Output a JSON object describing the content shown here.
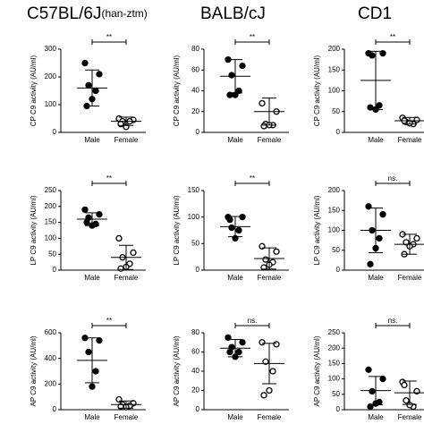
{
  "column_titles": [
    {
      "text": "C57BL/6J",
      "sub": "(han-ztm)"
    },
    {
      "text": "BALB/cJ"
    },
    {
      "text": "CD1"
    }
  ],
  "chart_data": [
    {
      "type": "scatter",
      "ylabel": "CP C9 activity (AU/ml)",
      "categories": [
        "Male",
        "Female"
      ],
      "points": [
        [
          250,
          210,
          170,
          150,
          120,
          95
        ],
        [
          50,
          45,
          40,
          40,
          20,
          30
        ]
      ],
      "means": [
        160,
        40
      ],
      "errors": [
        65,
        15
      ],
      "fills": [
        "#000",
        "#fff"
      ],
      "significance": "**",
      "ylim": [
        0,
        300
      ],
      "yticks": [
        0,
        100,
        200,
        300
      ]
    },
    {
      "type": "scatter",
      "ylabel": "CP C9 activity (AU/ml)",
      "categories": [
        "Male",
        "Female"
      ],
      "points": [
        [
          70,
          64,
          55,
          40,
          36,
          36
        ],
        [
          28,
          20,
          8,
          7,
          7,
          6
        ]
      ],
      "means": [
        54,
        20
      ],
      "errors": [
        16,
        13
      ],
      "fills": [
        "#000",
        "#fff"
      ],
      "significance": "**",
      "ylim": [
        0,
        80
      ],
      "yticks": [
        0,
        20,
        40,
        60,
        80
      ]
    },
    {
      "type": "scatter",
      "ylabel": "CP C9 activity (AU/ml)",
      "categories": [
        "Male",
        "Female"
      ],
      "points": [
        [
          190,
          190,
          185,
          65,
          55,
          60
        ],
        [
          35,
          30,
          25,
          20,
          22,
          28
        ]
      ],
      "means": [
        125,
        28
      ],
      "errors": [
        70,
        8
      ],
      "fills": [
        "#000",
        "#fff"
      ],
      "significance": "**",
      "ylim": [
        0,
        200
      ],
      "yticks": [
        0,
        50,
        100,
        150,
        200
      ]
    },
    {
      "type": "scatter",
      "ylabel": "LP C9 activity (AU/ml)",
      "categories": [
        "Male",
        "Female"
      ],
      "points": [
        [
          190,
          175,
          165,
          145,
          140,
          150
        ],
        [
          100,
          55,
          40,
          20,
          10,
          5
        ]
      ],
      "means": [
        160,
        40
      ],
      "errors": [
        20,
        38
      ],
      "fills": [
        "#000",
        "#fff"
      ],
      "significance": "**",
      "ylim": [
        0,
        250
      ],
      "yticks": [
        0,
        50,
        100,
        150,
        200,
        250
      ]
    },
    {
      "type": "scatter",
      "ylabel": "LP C9 activity (AU/ml)",
      "categories": [
        "Male",
        "Female"
      ],
      "points": [
        [
          100,
          100,
          80,
          75,
          60,
          95
        ],
        [
          45,
          35,
          20,
          15,
          10,
          5
        ]
      ],
      "means": [
        82,
        22
      ],
      "errors": [
        19,
        20
      ],
      "fills": [
        "#000",
        "#fff"
      ],
      "significance": "**",
      "ylim": [
        0,
        150
      ],
      "yticks": [
        0,
        50,
        100,
        150
      ]
    },
    {
      "type": "scatter",
      "ylabel": "LP C9 activity (AU/ml)",
      "categories": [
        "Male",
        "Female"
      ],
      "points": [
        [
          160,
          140,
          100,
          80,
          55,
          15
        ],
        [
          90,
          80,
          70,
          65,
          60,
          40
        ]
      ],
      "means": [
        100,
        65
      ],
      "errors": [
        56,
        25
      ],
      "fills": [
        "#000",
        "#fff"
      ],
      "significance": "ns.",
      "ylim": [
        0,
        200
      ],
      "yticks": [
        0,
        50,
        100,
        150,
        200
      ]
    },
    {
      "type": "scatter",
      "ylabel": "AP C9 activity (AU/ml)",
      "categories": [
        "Male",
        "Female"
      ],
      "points": [
        [
          560,
          540,
          450,
          300,
          180
        ],
        [
          80,
          50,
          40,
          30,
          20,
          25
        ]
      ],
      "means": [
        385,
        40
      ],
      "errors": [
        175,
        28
      ],
      "fills": [
        "#000",
        "#fff"
      ],
      "significance": "**",
      "ylim": [
        0,
        600
      ],
      "yticks": [
        0,
        200,
        400,
        600
      ]
    },
    {
      "type": "scatter",
      "ylabel": "AP C9 activity (AU/ml)",
      "categories": [
        "Male",
        "Female"
      ],
      "points": [
        [
          75,
          70,
          65,
          60,
          55,
          60
        ],
        [
          70,
          68,
          50,
          40,
          20,
          15
        ]
      ],
      "means": [
        64,
        48
      ],
      "errors": [
        9,
        21
      ],
      "fills": [
        "#000",
        "#fff"
      ],
      "significance": "ns.",
      "ylim": [
        0,
        80
      ],
      "yticks": [
        0,
        20,
        40,
        60,
        80
      ]
    },
    {
      "type": "scatter",
      "ylabel": "AP C9 activity (AU/ml)",
      "categories": [
        "Male",
        "Female"
      ],
      "points": [
        [
          130,
          100,
          60,
          25,
          20,
          10
        ],
        [
          90,
          60,
          30,
          10,
          15,
          80
        ]
      ],
      "means": [
        62,
        55
      ],
      "errors": [
        46,
        38
      ],
      "fills": [
        "#000",
        "#fff"
      ],
      "significance": "ns.",
      "ylim": [
        0,
        250
      ],
      "yticks": [
        0,
        50,
        100,
        150,
        200,
        250
      ]
    }
  ]
}
